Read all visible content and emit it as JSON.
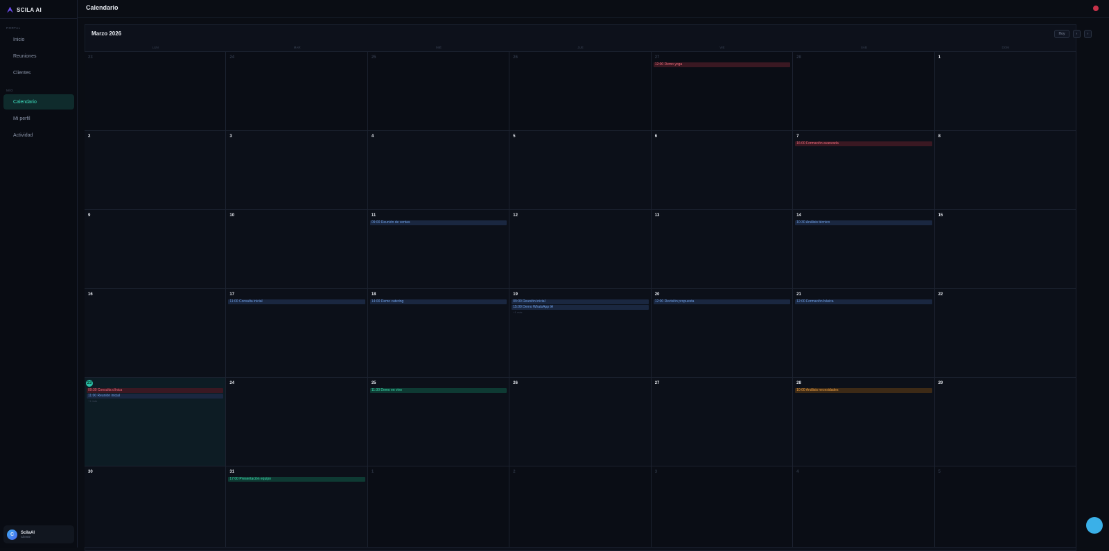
{
  "sidebar": {
    "brand": "SCILA AI",
    "sections": [
      {
        "title": "PORTAL",
        "items": [
          {
            "label": "Inicio"
          },
          {
            "label": "Reuniones"
          },
          {
            "label": "Clientes"
          }
        ]
      },
      {
        "title": "MÍO",
        "items": [
          {
            "label": "Calendario",
            "active": true
          },
          {
            "label": "Mi perfil"
          },
          {
            "label": "Actividad"
          }
        ]
      }
    ],
    "user": {
      "avatar": "C",
      "name": "ScilaAI",
      "role": "Cliente"
    }
  },
  "header": {
    "title": "Calendario"
  },
  "calendar": {
    "month": "Marzo 2026",
    "buttons": [
      "Hoy",
      "‹",
      "›"
    ],
    "weekdays": [
      "LUN",
      "MAR",
      "MIÉ",
      "JUE",
      "VIE",
      "SÁB",
      "DOM"
    ],
    "weeks": [
      {
        "days": [
          {
            "day": 23
          },
          {
            "day": 24
          },
          {
            "day": 25
          },
          {
            "day": 26
          },
          {
            "day": 27,
            "events": [
              {
                "label": "12:00 Demo yoga",
                "color": "red"
              }
            ]
          },
          {
            "day": 28
          },
          {
            "day": 1
          }
        ]
      },
      {
        "days": [
          {
            "day": 2
          },
          {
            "day": 3
          },
          {
            "day": 4
          },
          {
            "day": 5
          },
          {
            "day": 6
          },
          {
            "day": 7,
            "events": [
              {
                "label": "16:00 Formación avanzada",
                "color": "red"
              }
            ]
          },
          {
            "day": 8
          }
        ]
      },
      {
        "days": [
          {
            "day": 9
          },
          {
            "day": 10
          },
          {
            "day": 11,
            "events": [
              {
                "label": "09:00 Reunión de ventas",
                "color": "blue"
              }
            ]
          },
          {
            "day": 12
          },
          {
            "day": 13
          },
          {
            "day": 14,
            "events": [
              {
                "label": "10:30 Análisis técnico",
                "color": "blue"
              }
            ]
          },
          {
            "day": 15
          }
        ]
      },
      {
        "days": [
          {
            "day": 16
          },
          {
            "day": 17,
            "events": [
              {
                "label": "11:00 Consulta inicial",
                "color": "blue"
              }
            ]
          },
          {
            "day": 18,
            "events": [
              {
                "label": "14:00 Demo catering",
                "color": "blue"
              }
            ]
          },
          {
            "day": 19,
            "events": [
              {
                "label": "09:00 Reunión inicial",
                "color": "blue"
              },
              {
                "label": "15:00 Demo WhatsApp IA",
                "color": "blue"
              }
            ],
            "more": "+1 más"
          },
          {
            "day": 20,
            "events": [
              {
                "label": "12:00 Revisión propuesta",
                "color": "blue"
              }
            ]
          },
          {
            "day": 21,
            "events": [
              {
                "label": "12:00 Formación básica",
                "color": "blue"
              }
            ]
          },
          {
            "day": 22
          }
        ]
      },
      {
        "days": [
          {
            "day": 23,
            "today": true,
            "events": [
              {
                "label": "09:30 Consulta clínica",
                "color": "red"
              },
              {
                "label": "11:00 Reunión inicial",
                "color": "blue"
              }
            ],
            "more": "+1 más"
          },
          {
            "day": 24
          },
          {
            "day": 25,
            "events": [
              {
                "label": "11:30 Demo en vivo",
                "color": "green"
              }
            ]
          },
          {
            "day": 26
          },
          {
            "day": 27
          },
          {
            "day": 28,
            "events": [
              {
                "label": "10:00 Análisis necesidades",
                "color": "orange"
              }
            ]
          },
          {
            "day": 29
          }
        ]
      },
      {
        "days": [
          {
            "day": 30
          },
          {
            "day": 31,
            "events": [
              {
                "label": "17:00 Presentación equipo",
                "color": "green"
              }
            ]
          },
          {
            "day": 1
          },
          {
            "day": 2
          },
          {
            "day": 3
          },
          {
            "day": 4
          },
          {
            "day": 5
          }
        ]
      }
    ]
  }
}
